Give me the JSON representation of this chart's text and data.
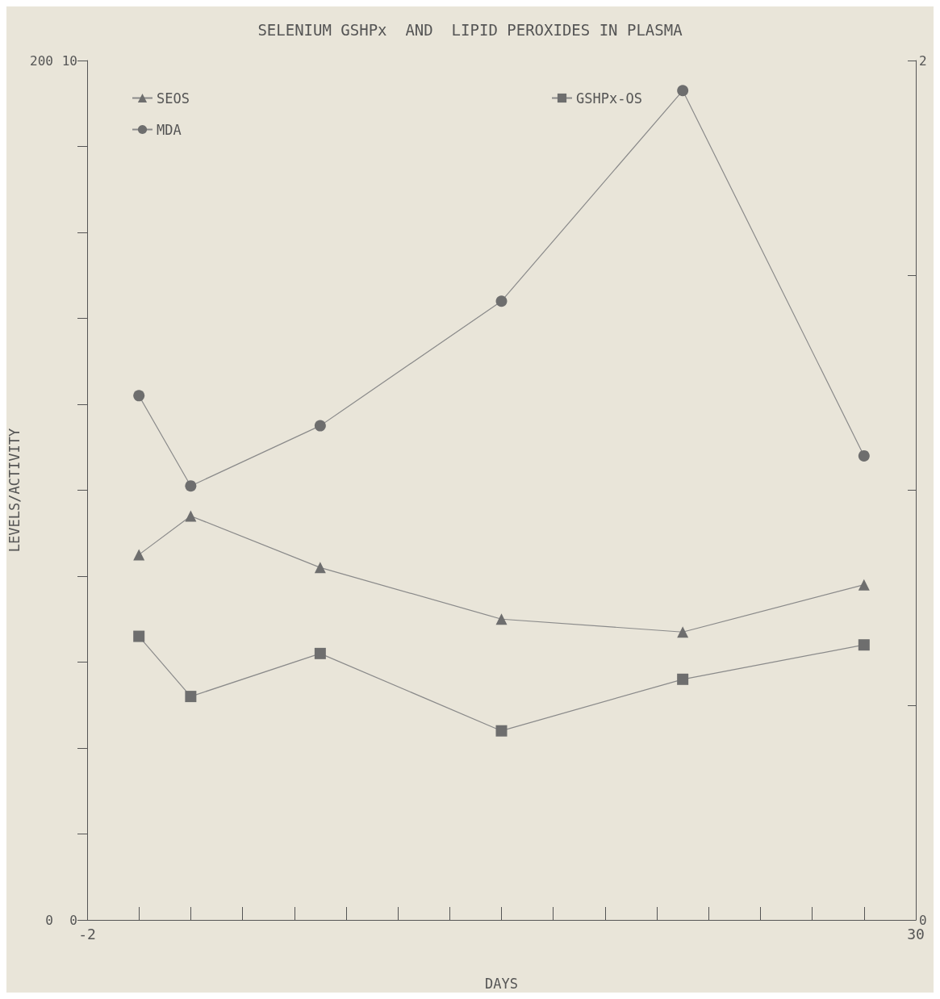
{
  "chart_data": {
    "type": "line",
    "title": "SELENIUM GSHPx  AND  LIPID PEROXIDES IN PLASMA",
    "xlabel": "DAYS",
    "ylabel": "LEVELS/ACTIVITY",
    "x": [
      0,
      2,
      7,
      14,
      21,
      28
    ],
    "xlim": [
      -2,
      30
    ],
    "xticks": [
      -2,
      {
        "value": 0,
        "label": null
      },
      {
        "value": 2,
        "label": null
      },
      {
        "value": 4,
        "label": null
      },
      {
        "value": 6,
        "label": null
      },
      {
        "value": 8,
        "label": null
      },
      {
        "value": 10,
        "label": null
      },
      {
        "value": 12,
        "label": null
      },
      {
        "value": 14,
        "label": null
      },
      {
        "value": 16,
        "label": null
      },
      {
        "value": 18,
        "label": null
      },
      {
        "value": 20,
        "label": null
      },
      {
        "value": 22,
        "label": null
      },
      {
        "value": 24,
        "label": null
      },
      {
        "value": 26,
        "label": null
      },
      {
        "value": 28,
        "label": null
      },
      30
    ],
    "ylim": [
      0,
      200
    ],
    "yticks": [
      0,
      {
        "value": 20,
        "label": null
      },
      {
        "value": 40,
        "label": null
      },
      {
        "value": 60,
        "label": null
      },
      {
        "value": 80,
        "label": null
      },
      {
        "value": 100,
        "label": null
      },
      {
        "value": 120,
        "label": null
      },
      {
        "value": 140,
        "label": null
      },
      {
        "value": 160,
        "label": null
      },
      {
        "value": 180,
        "label": null
      },
      200
    ],
    "y2lim": [
      0,
      10
    ],
    "y2ticks": [
      0,
      10
    ],
    "y3lim": [
      0,
      2
    ],
    "y3ticks": [
      0,
      {
        "value": 0.5,
        "label": null
      },
      {
        "value": 1,
        "label": null
      },
      {
        "value": 1.5,
        "label": null
      },
      2
    ],
    "series": [
      {
        "name": "SEOS",
        "color": "#6e6e6e",
        "marker": "triangle",
        "values": [
          85,
          94,
          82,
          70,
          67,
          78
        ]
      },
      {
        "name": "MDA",
        "color": "#6e6e6e",
        "marker": "circle",
        "values": [
          122,
          101,
          115,
          144,
          193,
          108
        ]
      },
      {
        "name": "GSHPx-OS",
        "color": "#6e6e6e",
        "marker": "square",
        "values": [
          66,
          52,
          62,
          44,
          56,
          64
        ]
      }
    ],
    "legend": "top left",
    "grid": false,
    "line_style": "solid"
  }
}
